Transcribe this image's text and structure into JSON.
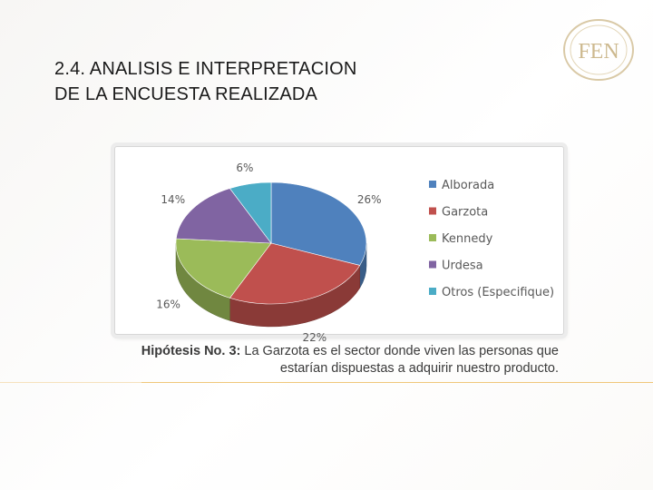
{
  "slide": {
    "title_line1": "2.4. ANALISIS E INTERPRETACION",
    "title_line2": "DE LA ENCUESTA REALIZADA",
    "caption_lead": "Hipótesis No. 3:",
    "caption_text": " La Garzota es el sector donde viven las personas que estarían dispuestas a adquirir nuestro producto.",
    "logo_text": "FEN"
  },
  "chart_data": {
    "type": "pie",
    "style": "3d",
    "categories": [
      "Alborada",
      "Garzota",
      "Kennedy",
      "Urdesa",
      "Otros (Especifique)"
    ],
    "values": [
      26,
      22,
      16,
      14,
      6
    ],
    "labels": [
      "26%",
      "22%",
      "16%",
      "14%",
      "6%"
    ],
    "colors": [
      "#4f81bd",
      "#c0504d",
      "#9bbb59",
      "#8064a2",
      "#4bacc6"
    ],
    "legend_position": "right"
  }
}
